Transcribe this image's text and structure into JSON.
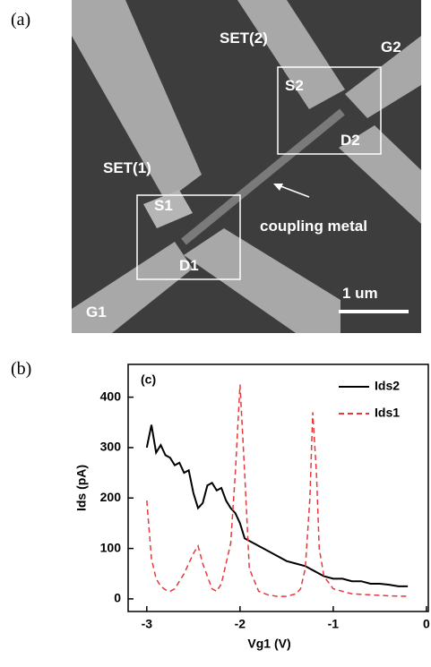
{
  "panel_a": {
    "label": "(a)",
    "labels": [
      "SET(2)",
      "G2",
      "S2",
      "D2",
      "SET(1)",
      "S1",
      "coupling metal",
      "D1",
      "G1",
      "1 um"
    ]
  },
  "panel_b_label": "(b)",
  "chart_data": {
    "type": "line",
    "annotation": "(c)",
    "xlabel": "Vg1 (V)",
    "ylabel": "Ids (pA)",
    "xlim": [
      -3.2,
      0.02
    ],
    "xticks": [
      -3,
      -2,
      -1,
      0
    ],
    "ylim": [
      -25,
      465
    ],
    "yticks": [
      0,
      100,
      200,
      300,
      400
    ],
    "legend": "upper right",
    "series": [
      {
        "name": "Ids2",
        "color": "#000000",
        "dash": "solid",
        "x": [
          -3.0,
          -2.95,
          -2.9,
          -2.85,
          -2.8,
          -2.75,
          -2.7,
          -2.65,
          -2.6,
          -2.55,
          -2.5,
          -2.45,
          -2.4,
          -2.35,
          -2.3,
          -2.25,
          -2.2,
          -2.15,
          -2.1,
          -2.05,
          -2.0,
          -1.95,
          -1.9,
          -1.8,
          -1.7,
          -1.6,
          -1.5,
          -1.4,
          -1.3,
          -1.2,
          -1.1,
          -1.0,
          -0.9,
          -0.8,
          -0.7,
          -0.6,
          -0.5,
          -0.4,
          -0.3,
          -0.2
        ],
        "values": [
          300,
          345,
          290,
          305,
          285,
          280,
          265,
          270,
          250,
          255,
          210,
          180,
          190,
          225,
          230,
          215,
          220,
          195,
          180,
          170,
          150,
          120,
          115,
          105,
          95,
          85,
          75,
          70,
          65,
          55,
          45,
          40,
          40,
          35,
          35,
          30,
          30,
          28,
          25,
          25
        ]
      },
      {
        "name": "Ids1",
        "color": "#e8383b",
        "dash": "dashed",
        "x": [
          -3.0,
          -2.95,
          -2.9,
          -2.85,
          -2.8,
          -2.75,
          -2.7,
          -2.6,
          -2.5,
          -2.45,
          -2.4,
          -2.3,
          -2.25,
          -2.2,
          -2.1,
          -2.05,
          -2.0,
          -1.95,
          -1.9,
          -1.8,
          -1.7,
          -1.6,
          -1.5,
          -1.4,
          -1.35,
          -1.3,
          -1.25,
          -1.22,
          -1.18,
          -1.15,
          -1.1,
          -1.0,
          -0.8,
          -0.6,
          -0.4,
          -0.2
        ],
        "values": [
          195,
          80,
          40,
          25,
          18,
          15,
          20,
          50,
          90,
          105,
          70,
          20,
          15,
          30,
          110,
          250,
          425,
          250,
          60,
          15,
          8,
          5,
          5,
          10,
          20,
          60,
          200,
          370,
          250,
          100,
          45,
          20,
          10,
          8,
          6,
          5
        ]
      }
    ]
  }
}
